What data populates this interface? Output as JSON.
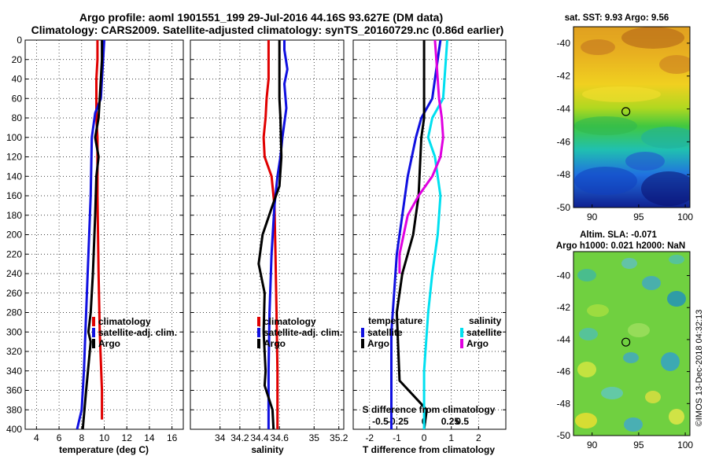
{
  "figure": {
    "title_line1": "Argo profile: aoml 1901551_199 29-Jul-2016 44.16S 93.627E (DM data)",
    "title_line2": "Climatology: CARS2009. Satellite-adjusted climatology: synTS_20160729.nc (0.86d earlier)",
    "timestamp": "©IMOS 13-Dec-2018 04:32:13"
  },
  "colors": {
    "climatology": "#e00000",
    "satellite": "#1010e0",
    "argo": "#000000",
    "sat_salinity": "#00e0f0",
    "argo_salinity": "#e000e0"
  },
  "chart_data": [
    {
      "id": "temperature",
      "type": "line",
      "xlabel": "temperature (deg C)",
      "ylabel": "",
      "xlim": [
        3,
        17
      ],
      "ylim": [
        400,
        0
      ],
      "xticks": [
        "4",
        "6",
        "8",
        "10",
        "12",
        "14",
        "16"
      ],
      "yticks": [
        "0",
        "20",
        "40",
        "60",
        "80",
        "100",
        "120",
        "140",
        "160",
        "180",
        "200",
        "220",
        "240",
        "260",
        "280",
        "300",
        "320",
        "340",
        "360",
        "380",
        "400"
      ],
      "grid": true,
      "legend": [
        "climatology",
        "satellite-adj. clim.",
        "Argo"
      ],
      "legend_position": "lower-right",
      "series": [
        {
          "name": "climatology",
          "color": "#e00000",
          "x": [
            9.4,
            9.4,
            9.3,
            9.3,
            9.3,
            9.4,
            9.4,
            9.5,
            9.6,
            9.8,
            9.8
          ],
          "y": [
            0,
            20,
            40,
            60,
            80,
            100,
            160,
            240,
            300,
            360,
            390
          ]
        },
        {
          "name": "satellite-adj. clim.",
          "color": "#1010e0",
          "x": [
            10.0,
            9.9,
            9.8,
            9.7,
            9.2,
            8.9,
            8.8,
            8.6,
            8.4,
            8.2,
            8.0,
            7.6
          ],
          "y": [
            0,
            20,
            40,
            60,
            75,
            100,
            160,
            220,
            280,
            340,
            380,
            400
          ]
        },
        {
          "name": "Argo",
          "color": "#000000",
          "x": [
            9.8,
            9.8,
            9.7,
            9.6,
            9.5,
            9.2,
            9.5,
            9.3,
            9.2,
            9.0,
            8.8,
            8.6,
            8.8,
            8.4,
            8.1
          ],
          "y": [
            0,
            20,
            40,
            60,
            80,
            100,
            120,
            140,
            180,
            240,
            280,
            300,
            310,
            360,
            400
          ]
        }
      ]
    },
    {
      "id": "salinity",
      "type": "line",
      "xlabel": "salinity",
      "ylabel": "",
      "xlim": [
        33.7,
        35.25
      ],
      "ylim": [
        400,
        0
      ],
      "xticks": [
        "34",
        "34.2",
        "34.4",
        "34.6",
        "35",
        "35.2"
      ],
      "xtick_values": [
        34.0,
        34.2,
        34.4,
        34.6,
        34.95,
        35.2
      ],
      "grid": true,
      "legend": [
        "climatology",
        "satellite-adj. clim.",
        "Argo"
      ],
      "legend_position": "lower-right",
      "series": [
        {
          "name": "climatology",
          "color": "#e00000",
          "x": [
            34.49,
            34.49,
            34.49,
            34.47,
            34.46,
            34.44,
            34.45,
            34.52,
            34.55,
            34.56,
            34.57,
            34.58,
            34.58
          ],
          "y": [
            0,
            20,
            40,
            60,
            80,
            100,
            120,
            140,
            170,
            220,
            280,
            340,
            400
          ]
        },
        {
          "name": "satellite-adj. clim.",
          "color": "#1010e0",
          "x": [
            34.65,
            34.65,
            34.68,
            34.65,
            34.67,
            34.63,
            34.61,
            34.58,
            34.55,
            34.52,
            34.5,
            34.49,
            34.49
          ],
          "y": [
            0,
            10,
            30,
            45,
            70,
            100,
            120,
            140,
            170,
            220,
            280,
            340,
            400
          ]
        },
        {
          "name": "Argo",
          "color": "#000000",
          "x": [
            34.6,
            34.6,
            34.6,
            34.61,
            34.62,
            34.6,
            34.53,
            34.43,
            34.39,
            34.45,
            34.44,
            34.46,
            34.45,
            34.53,
            34.54
          ],
          "y": [
            0,
            40,
            60,
            80,
            120,
            150,
            170,
            200,
            230,
            260,
            300,
            340,
            355,
            380,
            400
          ]
        }
      ]
    },
    {
      "id": "difference",
      "type": "line",
      "xlabel": "T difference from climatology",
      "xlabel2": "S difference from climatology",
      "xlim": [
        -2.6,
        3
      ],
      "ylim": [
        400,
        0
      ],
      "xticks": [
        "-2",
        "-1",
        "0",
        "1",
        "2"
      ],
      "xticks2": [
        "-0.5",
        "-0.25",
        "0",
        "0.25",
        "0.5"
      ],
      "grid": true,
      "legend_temperature_heading": "temperature",
      "legend_salinity_heading": "salinity",
      "legend_temperature": [
        "satellite",
        "Argo"
      ],
      "legend_salinity": [
        "satellite",
        "Argo"
      ],
      "series": [
        {
          "name": "temperature satellite",
          "color": "#1010e0",
          "x": [
            0.6,
            0.5,
            0.4,
            0.3,
            -0.1,
            -0.3,
            -0.6,
            -0.8,
            -1.0,
            -1.1,
            -1.2,
            -1.2,
            -1.2
          ],
          "y": [
            0,
            20,
            40,
            60,
            80,
            100,
            140,
            180,
            220,
            260,
            300,
            360,
            400
          ]
        },
        {
          "name": "temperature Argo",
          "color": "#000000",
          "x": [
            0.0,
            0.0,
            0.0,
            -0.1,
            -0.2,
            -0.4,
            -0.8,
            -1.0,
            -0.9,
            0.1,
            0.0
          ],
          "y": [
            0,
            60,
            80,
            100,
            160,
            200,
            240,
            280,
            350,
            380,
            400
          ]
        },
        {
          "name": "salinity satellite",
          "color": "#00e0f0",
          "x": [
            0.85,
            0.8,
            0.7,
            0.3,
            0.15,
            0.4,
            0.6,
            0.5,
            0.3,
            0.15,
            0.0,
            0.0
          ],
          "y": [
            0,
            20,
            60,
            80,
            100,
            120,
            160,
            200,
            240,
            280,
            340,
            400
          ]
        },
        {
          "name": "salinity Argo",
          "color": "#e000e0",
          "x": [
            0.4,
            0.45,
            0.55,
            0.65,
            0.7,
            0.6,
            0.3,
            -0.2,
            -0.6,
            -0.9,
            -0.9
          ],
          "y": [
            0,
            20,
            60,
            80,
            100,
            120,
            140,
            160,
            180,
            220,
            240
          ]
        }
      ]
    }
  ],
  "maps": [
    {
      "id": "sst-map",
      "title": "sat. SST: 9.93 Argo: 9.56",
      "xlim": [
        88,
        100.5
      ],
      "ylim": [
        -50,
        -39
      ],
      "xticks": [
        "90",
        "95",
        "100"
      ],
      "yticks": [
        "-40",
        "-42",
        "-44",
        "-46",
        "-48",
        "-50"
      ],
      "marker": {
        "lon": 93.627,
        "lat": -44.16
      }
    },
    {
      "id": "sla-map",
      "title_line1": "Altim. SLA: -0.071",
      "title_line2": "Argo h1000: 0.021 h2000: NaN",
      "xlim": [
        88,
        100.5
      ],
      "ylim": [
        -50,
        -38.5
      ],
      "xticks": [
        "90",
        "95",
        "100"
      ],
      "yticks": [
        "-40",
        "-42",
        "-44",
        "-46",
        "-48",
        "-50"
      ],
      "marker": {
        "lon": 93.627,
        "lat": -44.16
      }
    }
  ]
}
